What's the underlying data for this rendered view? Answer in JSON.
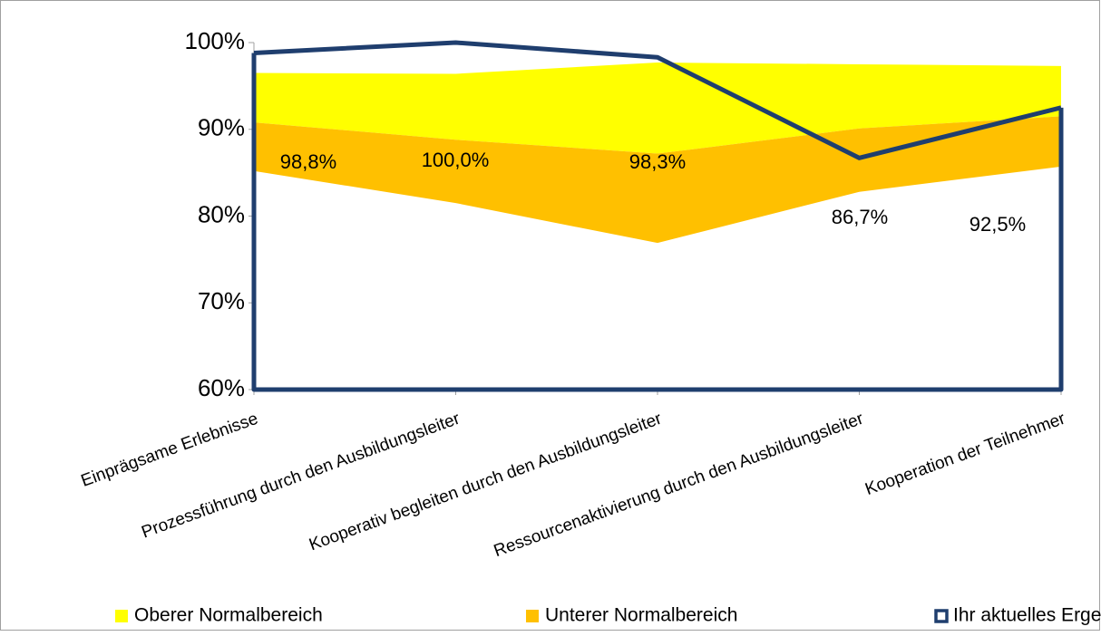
{
  "chart_data": {
    "type": "area",
    "categories": [
      "Einprägsame Erlebnisse",
      "Prozessführung durch den Ausbildungsleiter",
      "Kooperativ begleiten durch den Ausbildungsleiter",
      "Ressourcenaktivierung durch den Ausbildungsleiter",
      "Kooperation der Teilnehmer"
    ],
    "bands": [
      {
        "name": "Oberer Normalbereich",
        "color": "#ffff00",
        "upper": [
          96.5,
          96.4,
          97.7,
          97.5,
          97.3
        ]
      },
      {
        "name": "Unterer Normalbereich",
        "color": "#ffc000",
        "lower": [
          85.2,
          81.5,
          76.9,
          82.8,
          85.7
        ],
        "upper": [
          90.8,
          88.8,
          87.2,
          90.1,
          91.5
        ]
      }
    ],
    "series": [
      {
        "name": "Ihr aktuelles Ergebnis",
        "color": "#1f3e6e",
        "values": [
          98.8,
          100,
          98.3,
          86.7,
          92.5
        ],
        "value_labels": [
          "98,8%",
          "100,0%",
          "98,3%",
          "86,7%",
          "92,5%"
        ]
      }
    ],
    "ylim": [
      60,
      100
    ],
    "yticks": [
      {
        "value": 60,
        "label": "60%"
      },
      {
        "value": 70,
        "label": "70%"
      },
      {
        "value": 80,
        "label": "80%"
      },
      {
        "value": 90,
        "label": "90%"
      },
      {
        "value": 100,
        "label": "100%"
      }
    ],
    "legend": "bottom"
  }
}
